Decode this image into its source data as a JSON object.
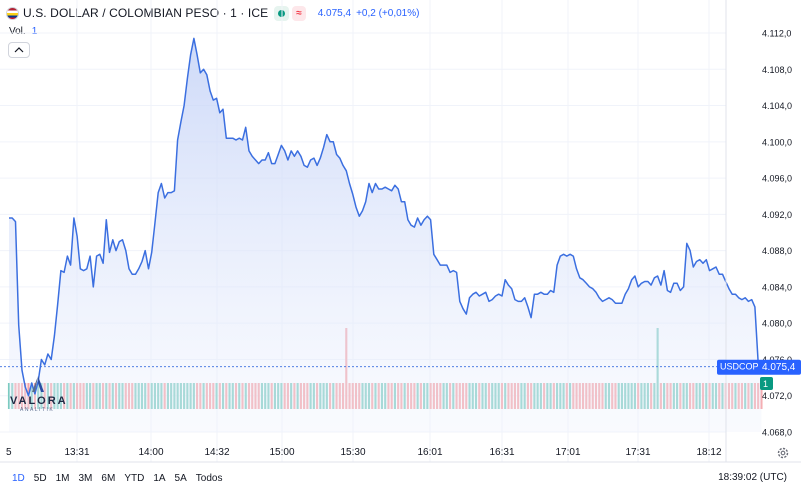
{
  "header": {
    "title": "U.S. DOLLAR / COLOMBIAN PESO · 1 · ICE",
    "price": "4.075,4",
    "change": "+0,2 (+0,01%)",
    "realtime_glyph": "≈",
    "flag_icon": "us-colombia-flag-icon"
  },
  "volume": {
    "label": "Vol.",
    "value": "1"
  },
  "price_label": {
    "symbol": "USDCOP",
    "value": "4.075,4",
    "color": "#2962ff"
  },
  "volume_label": {
    "value": "1",
    "color": "#089981"
  },
  "logo": {
    "name": "VALORA",
    "sub": "ANALITIK"
  },
  "colors": {
    "line": "#3b6fe0",
    "fill_top": "#c5d3f7",
    "up": "#7ccbc0",
    "down": "#f5a2a6"
  },
  "range_buttons": [
    "1D",
    "5D",
    "1M",
    "3M",
    "6M",
    "YTD",
    "1A",
    "5A",
    "Todos"
  ],
  "active_range": "1D",
  "clock": "18:39:02 (UTC)",
  "chart_data": {
    "type": "area",
    "title": "U.S. DOLLAR / COLOMBIAN PESO · 1 · ICE",
    "ylim": [
      4066.6,
      4113.6
    ],
    "yticks": [
      4112,
      4108,
      4104,
      4100,
      4096,
      4092,
      4088,
      4084,
      4080,
      4076,
      4072,
      4068
    ],
    "ytick_labels": [
      "4.112,0",
      "4.108,0",
      "4.104,0",
      "4.100,0",
      "4.096,0",
      "4.092,0",
      "4.088,0",
      "4.084,0",
      "4.080,0",
      "4.076,0",
      "4.072,0",
      "4.068,0"
    ],
    "xlim": [
      0,
      218
    ],
    "xticks": [
      0,
      20,
      40,
      58,
      78,
      98,
      117,
      137,
      156,
      176,
      196
    ],
    "xtick_labels": [
      "5",
      "13:31",
      "14:00",
      "14:32",
      "15:00",
      "15:30",
      "16:01",
      "16:31",
      "17:01",
      "17:31",
      "18:12"
    ],
    "grid": true,
    "legend": "none",
    "series": [
      {
        "values": [
          4091.6,
          4091.6,
          4091.2,
          4079.8,
          4074.8,
          4073.0,
          4072.0,
          4073.4,
          4072.2,
          4073.6,
          4076.0,
          4075.4,
          4076.6,
          4076.0,
          4078.6,
          4082.0,
          4085.8,
          4085.6,
          4087.4,
          4086.4,
          4091.6,
          4089.6,
          4086.0,
          4085.8,
          4086.0,
          4087.4,
          4084.0,
          4087.4,
          4087.6,
          4086.6,
          4091.4,
          4087.8,
          4089.2,
          4088.0,
          4089.0,
          4089.2,
          4088.0,
          4086.0,
          4085.4,
          4085.4,
          4086.0,
          4086.8,
          4088.0,
          4086.0,
          4087.8,
          4091.0,
          4094.4,
          4095.4,
          4093.8,
          4094.4,
          4094.4,
          4094.6,
          4100.2,
          4102.2,
          4104.0,
          4107.0,
          4109.6,
          4111.4,
          4109.6,
          4107.6,
          4108.0,
          4107.4,
          4105.6,
          4104.6,
          4104.8,
          4103.2,
          4103.6,
          4100.4,
          4100.4,
          4100.4,
          4100.2,
          4100.4,
          4100.2,
          4101.6,
          4099.0,
          4098.4,
          4098.0,
          4097.6,
          4098.0,
          4098.0,
          4098.8,
          4097.6,
          4097.6,
          4098.6,
          4099.6,
          4099.0,
          4098.0,
          4099.0,
          4098.4,
          4099.0,
          4098.4,
          4097.4,
          4097.2,
          4098.0,
          4098.2,
          4097.4,
          4098.2,
          4099.4,
          4100.8,
          4100.0,
          4100.0,
          4098.6,
          4098.2,
          4097.4,
          4096.8,
          4095.4,
          4094.2,
          4092.8,
          4091.8,
          4092.4,
          4093.4,
          4095.4,
          4094.4,
          4095.4,
          4094.8,
          4094.8,
          4095.0,
          4094.8,
          4094.6,
          4095.2,
          4094.8,
          4093.4,
          4093.4,
          4091.4,
          4090.8,
          4090.6,
          4091.6,
          4090.8,
          4091.4,
          4091.8,
          4091.4,
          4087.6,
          4087.0,
          4086.4,
          4086.4,
          4086.4,
          4085.6,
          4085.8,
          4085.6,
          4082.4,
          4081.6,
          4081.0,
          4082.8,
          4083.2,
          4083.4,
          4083.0,
          4083.2,
          4083.4,
          4082.4,
          4082.6,
          4083.0,
          4083.2,
          4083.0,
          4084.8,
          4084.2,
          4083.8,
          4082.6,
          4082.4,
          4082.4,
          4082.8,
          4081.8,
          4080.6,
          4083.2,
          4083.2,
          4083.4,
          4083.2,
          4083.2,
          4083.6,
          4083.4,
          4086.4,
          4087.4,
          4087.6,
          4087.4,
          4087.6,
          4087.4,
          4086.0,
          4085.0,
          4084.8,
          4084.4,
          4084.0,
          4083.8,
          4083.4,
          4082.8,
          4082.4,
          4082.6,
          4082.8,
          4082.6,
          4082.2,
          4082.2,
          4082.2,
          4083.2,
          4083.8,
          4084.8,
          4085.2,
          4084.0,
          4084.4,
          4084.6,
          4084.6,
          4084.2,
          4085.0,
          4085.2,
          4084.2,
          4085.8,
          4083.6,
          4083.4,
          4084.4,
          4084.4,
          4083.6,
          4084.0,
          4088.8,
          4088.0,
          4086.2,
          4086.8,
          4087.0,
          4086.6,
          4087.0,
          4085.8,
          4086.0,
          4086.2,
          4085.4,
          4085.4,
          4084.6,
          4083.8,
          4083.2,
          4083.2,
          4082.8,
          4082.6,
          4082.8,
          4082.4,
          4082.6,
          4081.8,
          4075.6,
          4075.2
        ]
      }
    ]
  }
}
